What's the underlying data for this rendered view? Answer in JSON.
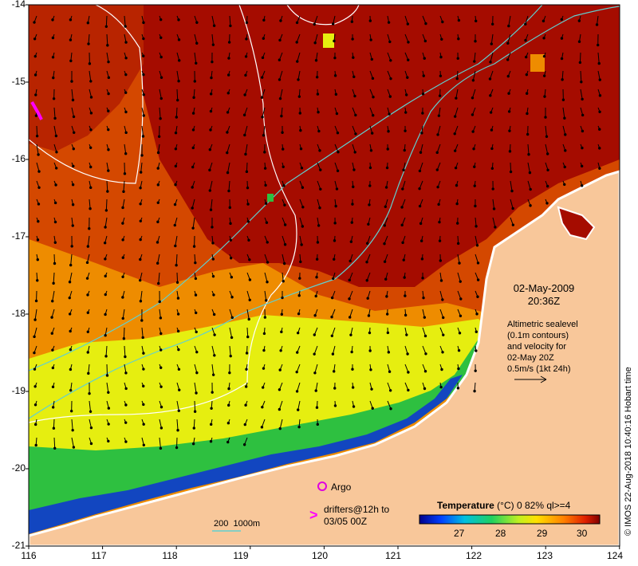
{
  "map": {
    "lon_ticks": [
      "116",
      "117",
      "118",
      "119",
      "120",
      "121",
      "122",
      "123",
      "124"
    ],
    "lat_ticks": [
      "-14",
      "-15",
      "-16",
      "-17",
      "-18",
      "-19",
      "-20",
      "-21"
    ],
    "colors": {
      "land": "#f8c79a",
      "sea_hot": "#a50c00",
      "sea_warm": "#d44800",
      "sea_mid": "#ee8c00",
      "sea_yellow": "#e6ee10",
      "sea_green": "#2ec040",
      "sea_blue": "#1246c0",
      "contour": "#60d0d0",
      "isobath": "#ffffff",
      "argo": "#e000e0",
      "drifter": "#ff00ff"
    }
  },
  "annotation": {
    "date": "02-May-2009",
    "time": "20:36Z",
    "info_lines": [
      "Altimetric sealevel",
      "(0.1m contours)",
      "and velocity for",
      "02-May 20Z",
      "0.5m/s (1kt 24h)"
    ]
  },
  "legend": {
    "argo_label": "Argo",
    "drifter_symbol": ">",
    "drifter_line1": "drifters@12h to",
    "drifter_line2": "03/05 00Z",
    "isobath_label": "200  1000m"
  },
  "colorbar": {
    "title": "Temperature",
    "unit": "(°C)",
    "stat": "0 82% ql>=4",
    "ticks": [
      "27",
      "28",
      "29",
      "30"
    ]
  },
  "credit": "© IMOS 22-Aug-2018 10:40:16 Hobart time"
}
